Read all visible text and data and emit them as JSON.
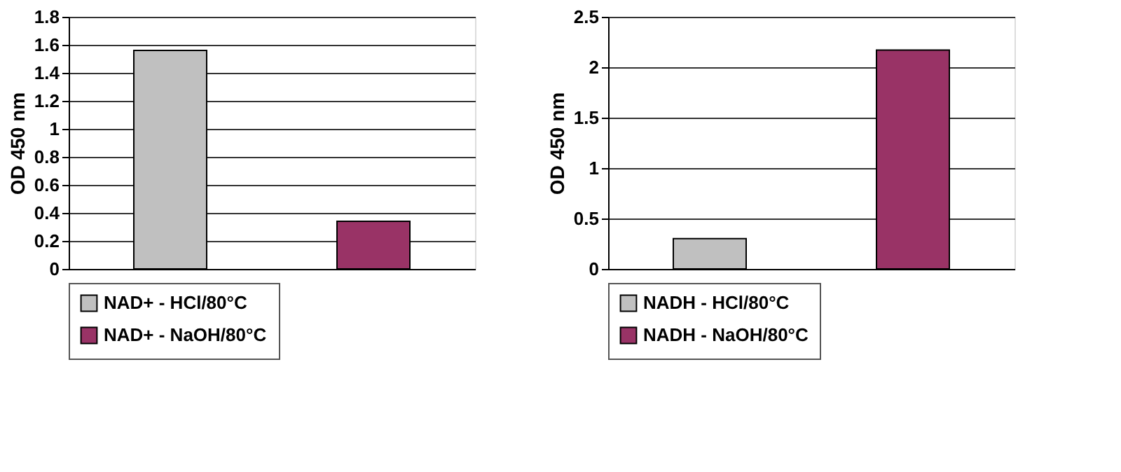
{
  "chart_data": [
    {
      "type": "bar",
      "ylabel": "OD 450 nm",
      "categories": [
        null,
        null
      ],
      "series": [
        {
          "name": "NAD+ - HCl/80°C",
          "color": "#c0c0c0",
          "values": [
            1.56,
            null
          ]
        },
        {
          "name": "NAD+ - NaOH/80°C",
          "color": "#993366",
          "values": [
            null,
            0.34
          ]
        }
      ],
      "ylim": [
        0,
        1.8
      ],
      "yticks": [
        0,
        0.2,
        0.4,
        0.6,
        0.8,
        1,
        1.2,
        1.4,
        1.6,
        1.8
      ],
      "grid": "y",
      "legend": "bottom"
    },
    {
      "type": "bar",
      "ylabel": "OD 450 nm",
      "categories": [
        null,
        null
      ],
      "series": [
        {
          "name": "NADH - HCl/80°C",
          "color": "#c0c0c0",
          "values": [
            0.3,
            null
          ]
        },
        {
          "name": "NADH - NaOH/80°C",
          "color": "#993366",
          "values": [
            null,
            2.17
          ]
        }
      ],
      "ylim": [
        0,
        2.5
      ],
      "yticks": [
        0,
        0.5,
        1,
        1.5,
        2,
        2.5
      ],
      "grid": "y",
      "legend": "bottom"
    }
  ]
}
